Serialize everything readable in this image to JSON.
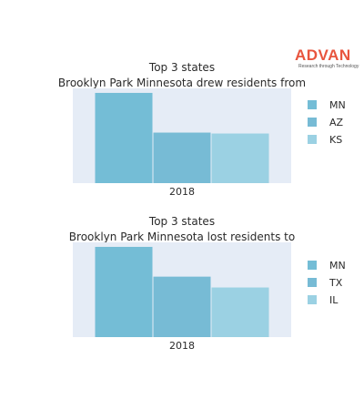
{
  "logo": {
    "name": "ADVAN",
    "tagline": "Research through Technology",
    "color": "#e8553e"
  },
  "colors": {
    "plot_bg": "#e5ecf6",
    "bar_1": "#74bdd6",
    "bar_2": "#77bbd5",
    "bar_3": "#9bd1e3",
    "text": "#2a2a2a"
  },
  "chart_data": [
    {
      "type": "bar",
      "title_lines": [
        "Top 3 states",
        "Brooklyn Park Minnesota drew residents from"
      ],
      "categories": [
        "2018"
      ],
      "series": [
        {
          "name": "MN",
          "values": [
            100
          ]
        },
        {
          "name": "AZ",
          "values": [
            56
          ]
        },
        {
          "name": "KS",
          "values": [
            55
          ]
        }
      ],
      "ylim": [
        0,
        105
      ],
      "grid": false,
      "yaxis_visible": false,
      "legend_position": "right"
    },
    {
      "type": "bar",
      "title_lines": [
        "Top 3 states",
        "Brooklyn Park Minnesota lost residents to"
      ],
      "categories": [
        "2018"
      ],
      "series": [
        {
          "name": "MN",
          "values": [
            100
          ]
        },
        {
          "name": "TX",
          "values": [
            67
          ]
        },
        {
          "name": "IL",
          "values": [
            55
          ]
        }
      ],
      "ylim": [
        0,
        105
      ],
      "grid": false,
      "yaxis_visible": false,
      "legend_position": "right"
    }
  ]
}
